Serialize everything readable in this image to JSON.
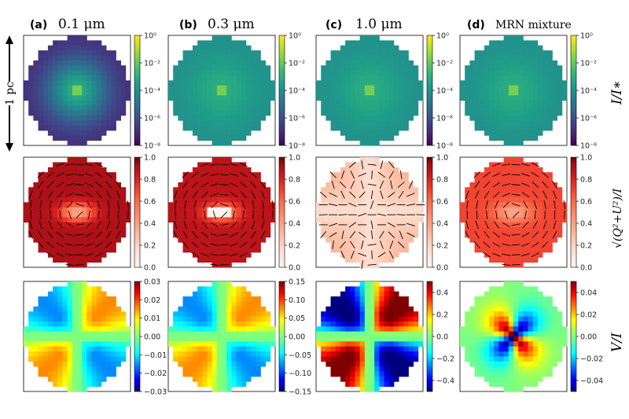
{
  "panels": [
    {
      "letter": "(a)",
      "title": "0.1 μm"
    },
    {
      "letter": "(b)",
      "title": "0.3 μm"
    },
    {
      "letter": "(c)",
      "title": "1.0 μm"
    },
    {
      "letter": "(d)",
      "title": "MRN mixture"
    }
  ],
  "scale_bar_label": "1 pc",
  "row_labels": [
    "I/I∗",
    "√(Q²+U²)/I",
    "V/I"
  ],
  "colors": {
    "viridis": [
      "#440154",
      "#482878",
      "#3e4989",
      "#31688e",
      "#26828e",
      "#1f9e89",
      "#35b779",
      "#6ece58",
      "#b5de2b",
      "#fde725"
    ],
    "reds": [
      "#fff5f0",
      "#fee0d2",
      "#fcbba1",
      "#fc9272",
      "#fb6a4a",
      "#ef3b2c",
      "#cb181d",
      "#a50f15",
      "#67000d"
    ],
    "jet": [
      "#00007f",
      "#0000ff",
      "#007fff",
      "#00ffff",
      "#7fff7f",
      "#ffff00",
      "#ff7f00",
      "#ff0000",
      "#7f0000"
    ]
  },
  "chart_data": [
    {
      "type": "heatmap",
      "row": "I/I∗",
      "panel": "(a)",
      "colorbar": {
        "scale": "log",
        "range": [
          1e-08,
          1
        ],
        "ticks": [
          "10⁰",
          "10⁻²",
          "10⁻⁴",
          "10⁻⁶",
          "10⁻⁸"
        ]
      },
      "center_value": 0.001,
      "edge_value": 1e-07
    },
    {
      "type": "heatmap",
      "row": "I/I∗",
      "panel": "(b)",
      "colorbar": {
        "scale": "log",
        "range": [
          1e-08,
          1
        ],
        "ticks": [
          "10⁰",
          "10⁻²",
          "10⁻⁴",
          "10⁻⁶",
          "10⁻⁸"
        ]
      },
      "center_value": 0.001,
      "edge_value": 0.0001
    },
    {
      "type": "heatmap",
      "row": "I/I∗",
      "panel": "(c)",
      "colorbar": {
        "scale": "log",
        "range": [
          1e-08,
          1
        ],
        "ticks": [
          "10⁰",
          "10⁻²",
          "10⁻⁴",
          "10⁻⁶",
          "10⁻⁸"
        ]
      },
      "center_value": 0.001,
      "edge_value": 0.0001
    },
    {
      "type": "heatmap",
      "row": "I/I∗",
      "panel": "(d)",
      "colorbar": {
        "scale": "log",
        "range": [
          1e-08,
          1
        ],
        "ticks": [
          "10⁰",
          "10⁻²",
          "10⁻⁴",
          "10⁻⁶",
          "10⁻⁸"
        ]
      },
      "center_value": 0.001,
      "edge_value": 0.0001
    },
    {
      "type": "heatmap",
      "row": "pol",
      "panel": "(a)",
      "colorbar": {
        "range": [
          0,
          1
        ],
        "ticks": [
          "1.0",
          "0.8",
          "0.6",
          "0.4",
          "0.2",
          "0.0"
        ]
      },
      "center_value": 0.3,
      "edge_value": 0.85,
      "vector_pattern": "azimuthal"
    },
    {
      "type": "heatmap",
      "row": "pol",
      "panel": "(b)",
      "colorbar": {
        "range": [
          0,
          1
        ],
        "ticks": [
          "1.0",
          "0.8",
          "0.6",
          "0.4",
          "0.2",
          "0.0"
        ]
      },
      "center_value": 0.35,
      "edge_value": 0.8,
      "vector_pattern": "azimuthal"
    },
    {
      "type": "heatmap",
      "row": "pol",
      "panel": "(c)",
      "colorbar": {
        "range": [
          0,
          1
        ],
        "ticks": [
          "1.0",
          "0.8",
          "0.6",
          "0.4",
          "0.2",
          "0.0"
        ]
      },
      "center_value": 0.2,
      "edge_value": 0.1,
      "vector_pattern": "mixed"
    },
    {
      "type": "heatmap",
      "row": "pol",
      "panel": "(d)",
      "colorbar": {
        "range": [
          0,
          1
        ],
        "ticks": [
          "1.0",
          "0.8",
          "0.6",
          "0.4",
          "0.2",
          "0.0"
        ]
      },
      "center_value": 0.3,
      "edge_value": 0.6,
      "vector_pattern": "azimuthal"
    },
    {
      "type": "heatmap",
      "row": "V/I",
      "panel": "(a)",
      "colorbar": {
        "range": [
          -0.03,
          0.03
        ],
        "ticks": [
          "0.03",
          "0.02",
          "0.01",
          "0.00",
          "−0.01",
          "−0.02",
          "−0.03"
        ]
      },
      "quadrant_amplitude": 0.012
    },
    {
      "type": "heatmap",
      "row": "V/I",
      "panel": "(b)",
      "colorbar": {
        "range": [
          -0.15,
          0.15
        ],
        "ticks": [
          "0.15",
          "0.10",
          "0.05",
          "0.00",
          "−0.05",
          "−0.10",
          "−0.15"
        ]
      },
      "quadrant_amplitude": 0.06
    },
    {
      "type": "heatmap",
      "row": "V/I",
      "panel": "(c)",
      "colorbar": {
        "range": [
          -0.5,
          0.5
        ],
        "ticks": [
          "0.4",
          "0.2",
          "0.0",
          "−0.2",
          "−0.4"
        ]
      },
      "quadrant_amplitude": 0.45
    },
    {
      "type": "heatmap",
      "row": "V/I",
      "panel": "(d)",
      "colorbar": {
        "range": [
          -0.05,
          0.05
        ],
        "ticks": [
          "0.04",
          "0.02",
          "0.00",
          "−0.02",
          "−0.04"
        ]
      },
      "quadrant_amplitude": 0.045
    }
  ]
}
